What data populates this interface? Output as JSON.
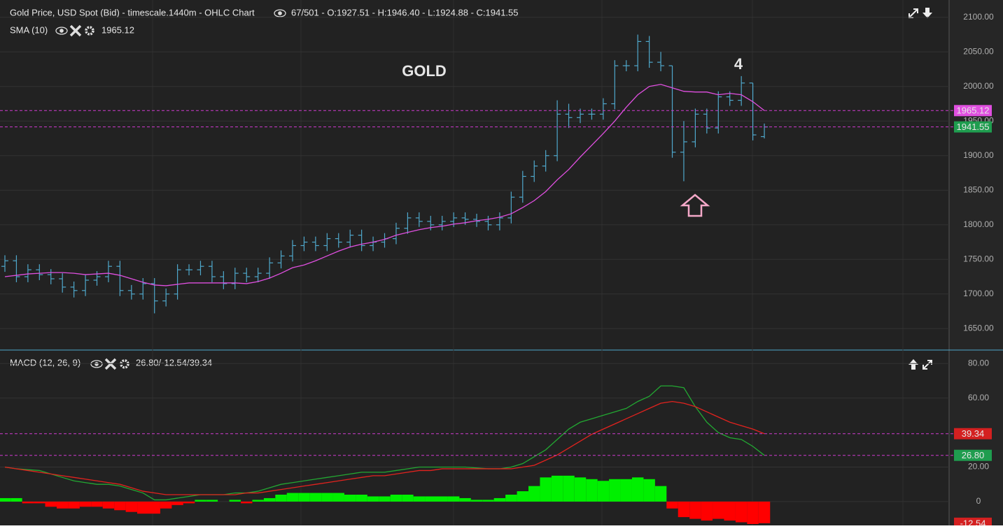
{
  "chart_data": [
    {
      "type": "ohlc",
      "title": "Gold Price, USD Spot (Bid) - timescale.1440m - OHLC Chart",
      "subtitle": "67/501 - O:1927.51 - H:1946.40 - L:1924.88 - C:1941.55",
      "color": "#4fa8cc",
      "last_color": "#1f9d4f",
      "open": [
        1740,
        1748,
        1725,
        1735,
        1728,
        1722,
        1710,
        1705,
        1720,
        1725,
        1740,
        1705,
        1700,
        1715,
        1690,
        1700,
        1735,
        1735,
        1740,
        1725,
        1715,
        1730,
        1725,
        1730,
        1745,
        1755,
        1770,
        1775,
        1770,
        1780,
        1775,
        1785,
        1770,
        1775,
        1780,
        1795,
        1810,
        1805,
        1800,
        1805,
        1810,
        1808,
        1805,
        1800,
        1810,
        1840,
        1870,
        1885,
        1900,
        1960,
        1955,
        1960,
        1960,
        1975,
        2030,
        2030,
        2065,
        2035,
        2030,
        1905,
        1920,
        1960,
        1940,
        1985,
        1980,
        2005,
        1927.51
      ],
      "high": [
        1756,
        1756,
        1743,
        1743,
        1736,
        1730,
        1718,
        1728,
        1733,
        1748,
        1748,
        1713,
        1723,
        1723,
        1708,
        1743,
        1743,
        1748,
        1748,
        1733,
        1738,
        1738,
        1738,
        1753,
        1763,
        1778,
        1783,
        1783,
        1788,
        1788,
        1793,
        1793,
        1783,
        1788,
        1803,
        1818,
        1818,
        1813,
        1813,
        1818,
        1818,
        1816,
        1813,
        1818,
        1848,
        1878,
        1893,
        1908,
        1980,
        1975,
        1968,
        1968,
        1983,
        2038,
        2038,
        2075,
        2073,
        2050,
        2030,
        1950,
        1968,
        1968,
        1993,
        1993,
        2015,
        2005,
        1946.4
      ],
      "low": [
        1732,
        1717,
        1717,
        1720,
        1714,
        1702,
        1695,
        1697,
        1712,
        1717,
        1697,
        1692,
        1692,
        1672,
        1682,
        1692,
        1727,
        1727,
        1717,
        1707,
        1707,
        1717,
        1717,
        1722,
        1737,
        1747,
        1762,
        1762,
        1762,
        1767,
        1767,
        1762,
        1762,
        1767,
        1772,
        1787,
        1797,
        1792,
        1792,
        1797,
        1800,
        1797,
        1792,
        1792,
        1802,
        1832,
        1862,
        1877,
        1892,
        1940,
        1947,
        1952,
        1952,
        1967,
        2022,
        2022,
        2027,
        2022,
        1897,
        1863,
        1912,
        1932,
        1932,
        1972,
        1972,
        1922,
        1924.88
      ],
      "close": [
        1748,
        1725,
        1735,
        1728,
        1722,
        1710,
        1705,
        1720,
        1725,
        1740,
        1705,
        1700,
        1715,
        1690,
        1700,
        1735,
        1735,
        1740,
        1725,
        1715,
        1730,
        1725,
        1730,
        1745,
        1755,
        1770,
        1775,
        1770,
        1780,
        1775,
        1785,
        1770,
        1775,
        1780,
        1795,
        1810,
        1805,
        1800,
        1805,
        1810,
        1808,
        1805,
        1800,
        1810,
        1840,
        1870,
        1885,
        1900,
        1960,
        1955,
        1960,
        1960,
        1975,
        2030,
        2030,
        2065,
        2035,
        2030,
        1905,
        1920,
        1960,
        1940,
        1985,
        1980,
        2005,
        1930,
        1941.55
      ],
      "series": [
        {
          "name": "SMA (10)",
          "color": "#e04fe0",
          "values": [
            1725,
            1727,
            1729,
            1730,
            1731,
            1731,
            1730,
            1728,
            1729,
            1730,
            1727,
            1722,
            1717,
            1713,
            1712,
            1714,
            1716,
            1716,
            1716,
            1716,
            1716,
            1715,
            1718,
            1723,
            1730,
            1738,
            1742,
            1748,
            1755,
            1762,
            1768,
            1772,
            1775,
            1779,
            1785,
            1789,
            1793,
            1796,
            1798,
            1801,
            1803,
            1806,
            1808,
            1811,
            1816,
            1825,
            1835,
            1848,
            1865,
            1880,
            1898,
            1915,
            1932,
            1950,
            1970,
            1988,
            2000,
            2003,
            1998,
            1993,
            1992,
            1992,
            1988,
            1990,
            1988,
            1978,
            1965.12
          ]
        }
      ],
      "annotations": [
        {
          "text": "GOLD",
          "color": "#f2c01e"
        },
        {
          "text": "4",
          "color": "#b8d640"
        }
      ],
      "ylim": [
        1620,
        2125
      ],
      "yticks": [
        {
          "value": 1650,
          "label": "1650.00"
        },
        {
          "value": 1700,
          "label": "1700.00"
        },
        {
          "value": 1750,
          "label": "1750.00"
        },
        {
          "value": 1800,
          "label": "1800.00"
        },
        {
          "value": 1850,
          "label": "1850.00"
        },
        {
          "value": 1900,
          "label": "1900.00"
        },
        {
          "value": 1950,
          "label": "1950.00"
        },
        {
          "value": 2000,
          "label": "2000.00"
        },
        {
          "value": 2050,
          "label": "2050.00"
        },
        {
          "value": 2100,
          "label": "2100.00"
        }
      ]
    },
    {
      "type": "macd",
      "title": "MACD (12, 26, 9)",
      "subtitle": "26.80/-12.54/39.34",
      "series": [
        {
          "color": "#22a832",
          "values": [
            20,
            19,
            18.5,
            18,
            16,
            14,
            12,
            11,
            10,
            10,
            9,
            7,
            5,
            1,
            1,
            2,
            3,
            4,
            4,
            4,
            5,
            5,
            6,
            8,
            10,
            11,
            12,
            13,
            14,
            15,
            16,
            17,
            17,
            17,
            18,
            19,
            20,
            20,
            20,
            20,
            20,
            19.5,
            19,
            19,
            20,
            22,
            26,
            30,
            36,
            42,
            46,
            48,
            50,
            52,
            54,
            58,
            61,
            67,
            67,
            66,
            55,
            46,
            40,
            37,
            36,
            32,
            26.8
          ],
          "value_labels": [
            null,
            null,
            null,
            null,
            null,
            null,
            null,
            null,
            null,
            null,
            null,
            null,
            null,
            null,
            null,
            null,
            null,
            null,
            null,
            null,
            null,
            null,
            null,
            null,
            null,
            null,
            null,
            null,
            null,
            null,
            null,
            null,
            null,
            null,
            null,
            null,
            null,
            null,
            null,
            null,
            null,
            null,
            null,
            null,
            null,
            null,
            null,
            null,
            null,
            null,
            null,
            null,
            null,
            null,
            null,
            null,
            null,
            null,
            null,
            null,
            null,
            null,
            null,
            null,
            null,
            null,
            "26.80"
          ]
        },
        {
          "color": "#e3221e",
          "values": [
            20,
            19,
            18,
            17,
            16,
            15,
            14,
            13,
            12,
            11,
            10,
            8,
            6,
            5,
            4,
            4,
            4,
            4,
            4,
            4,
            4,
            5,
            5,
            6,
            7,
            8,
            9,
            10,
            11,
            12,
            13,
            14,
            15,
            15,
            16,
            17,
            18,
            18,
            19,
            19,
            19,
            19,
            19,
            19,
            19,
            20,
            21,
            24,
            27,
            31,
            35,
            39,
            42,
            45,
            48,
            51,
            54,
            57,
            58,
            57,
            55,
            52,
            49,
            46,
            44,
            42,
            39.34
          ]
        },
        {
          "type": "bar",
          "colors": {
            "up": "#00f000",
            "down": "#ff0000"
          },
          "values": [
            2,
            2,
            -1,
            -1,
            -3,
            -4,
            -4,
            -3,
            -3,
            -4,
            -5,
            -6,
            -7,
            -7,
            -4,
            -2,
            -1,
            1,
            1,
            0,
            1,
            -1,
            1,
            2,
            4,
            5,
            5,
            5,
            5,
            5,
            4,
            4,
            3,
            3,
            4,
            4,
            3,
            3,
            3,
            3,
            2,
            1,
            1,
            2,
            4,
            6,
            9,
            14,
            15,
            15,
            14,
            13,
            12,
            13,
            13,
            14,
            13,
            9,
            -4,
            -9,
            -10,
            -11,
            -10,
            -11,
            -12,
            -13,
            -12.54
          ]
        }
      ],
      "ylim": [
        -13,
        87
      ],
      "yticks": [
        0,
        {
          "value": 20,
          "label": "20.00"
        },
        {
          "value": 60,
          "label": "60.00"
        },
        {
          "value": 80,
          "label": "80.00"
        }
      ]
    }
  ]
}
